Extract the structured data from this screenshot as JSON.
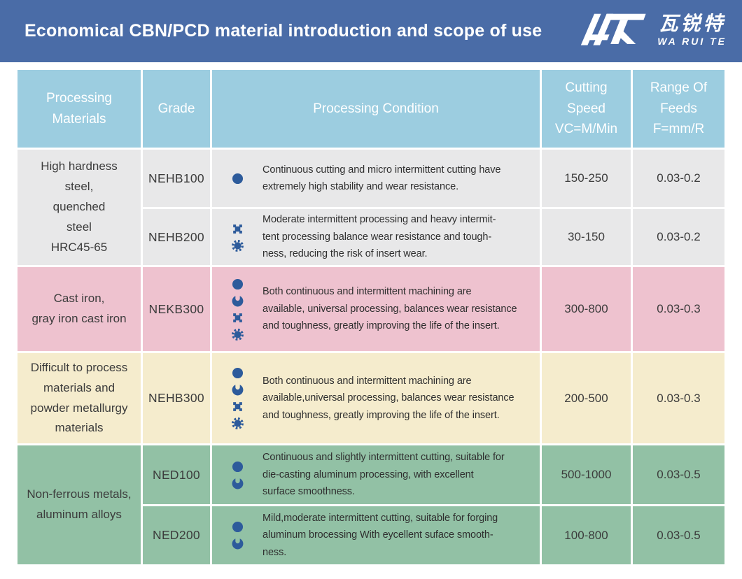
{
  "colors": {
    "headerbar": "#4a6ca7",
    "tablehead": "#9ccde0",
    "rowgray": "#e8e8e9",
    "rowpink": "#eec2cf",
    "rowcream": "#f5eccd",
    "rowgreen": "#92c1a5",
    "iconblue": "#2d5b9b"
  },
  "header": {
    "title": "Economical CBN/PCD material introduction and scope of use",
    "logo_cn": "瓦锐特",
    "logo_en": "WA RUI TE"
  },
  "table": {
    "columns": [
      "Processing\nMaterials",
      "Grade",
      "Processing Condition",
      "Cutting\nSpeed\nVC=M/Min",
      "Range Of\nFeeds\nF=mm/R"
    ],
    "material_groups": [
      {
        "label": "High hardness\nsteel,\nquenched\nsteel\nHRC45-65"
      },
      {
        "label": "Cast iron,\ngray iron cast iron"
      },
      {
        "label": "Difficult to process\nmaterials and\npowder metallurgy\nmaterials"
      },
      {
        "label": "Non-ferrous metals,\naluminum alloys"
      }
    ],
    "rows": [
      {
        "grade": "NEHB100",
        "icons": [
          "circle"
        ],
        "condition": "Continuous cutting and micro intermittent cutting have\nextremely high stability and wear resistance.",
        "speed": "150-250",
        "feed": "0.03-0.2"
      },
      {
        "grade": "NEHB200",
        "icons": [
          "gear4",
          "gear8"
        ],
        "condition": "Moderate intermittent processing and heavy intermit-\ntent processing balance wear resistance and tough-\nness, reducing the risk of insert wear.",
        "speed": "30-150",
        "feed": "0.03-0.2"
      },
      {
        "grade": "NEKB300",
        "icons": [
          "circle",
          "notched-circle",
          "gear4",
          "gear8"
        ],
        "condition": "Both continuous and intermittent machining are\navailable, universal processing, balances wear resistance\nand toughness, greatly improving the life of the insert.",
        "speed": "300-800",
        "feed": "0.03-0.3"
      },
      {
        "grade": "NEHB300",
        "icons": [
          "circle",
          "notched-circle",
          "gear4",
          "gear8"
        ],
        "condition": "Both continuous and intermittent machining are\navailable,universal processing, balances wear resistance\nand toughness, greatly improving the life of the insert.",
        "speed": "200-500",
        "feed": "0.03-0.3"
      },
      {
        "grade": "NED100",
        "icons": [
          "circle",
          "notched-circle"
        ],
        "condition": "Continuous and slightly intermittent cutting, suitable for\ndie-casting aluminum processing, with excellent\nsurface smoothness.",
        "speed": "500-1000",
        "feed": "0.03-0.5"
      },
      {
        "grade": "NED200",
        "icons": [
          "circle",
          "notched-circle"
        ],
        "condition": "Mild,moderate intermittent cutting, suitable for forging\naluminum brocessing With eycellent suface smooth-\nness.",
        "speed": "100-800",
        "feed": "0.03-0.5"
      }
    ]
  }
}
